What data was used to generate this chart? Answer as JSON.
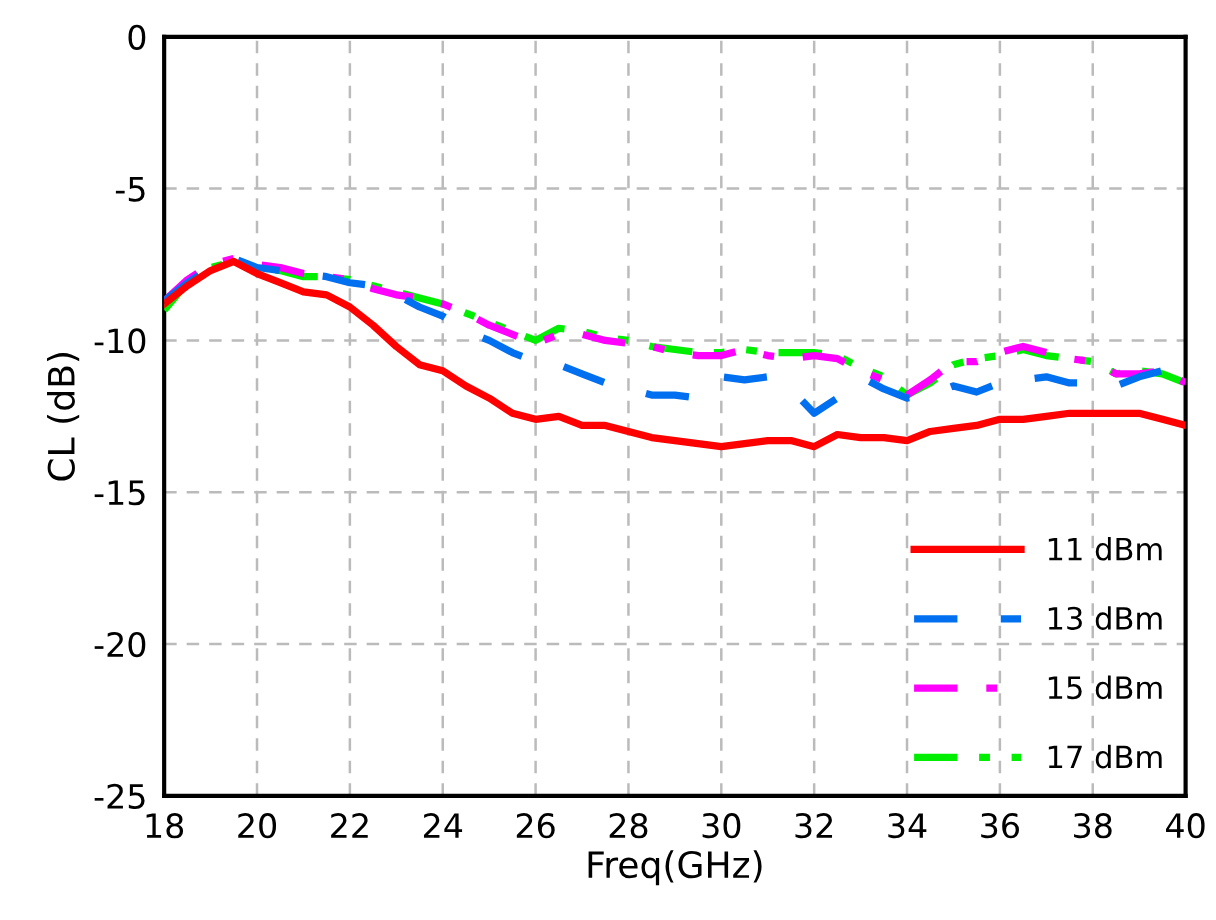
{
  "chart_data": {
    "type": "line",
    "xlabel": "Freq(GHz)",
    "ylabel": "CL (dB)",
    "x": [
      18,
      18.5,
      19,
      19.5,
      20,
      20.5,
      21,
      21.5,
      22,
      22.5,
      23,
      23.5,
      24,
      24.5,
      25,
      25.5,
      26,
      26.5,
      27,
      27.5,
      28,
      28.5,
      29,
      29.5,
      30,
      30.5,
      31,
      31.5,
      32,
      32.5,
      33,
      33.5,
      34,
      34.5,
      35,
      35.5,
      36,
      36.5,
      37,
      37.5,
      38,
      38.5,
      39,
      39.5,
      40
    ],
    "series": [
      {
        "name": "11 dBm",
        "color": "#ff0000",
        "line_style": "solid",
        "values": [
          -8.8,
          -8.2,
          -7.7,
          -7.4,
          -7.8,
          -8.1,
          -8.4,
          -8.5,
          -8.9,
          -9.5,
          -10.2,
          -10.8,
          -11.0,
          -11.5,
          -11.9,
          -12.4,
          -12.6,
          -12.5,
          -12.8,
          -12.8,
          -13.0,
          -13.2,
          -13.3,
          -13.4,
          -13.5,
          -13.4,
          -13.3,
          -13.3,
          -13.5,
          -13.1,
          -13.2,
          -13.2,
          -13.3,
          -13.0,
          -12.9,
          -12.8,
          -12.6,
          -12.6,
          -12.5,
          -12.4,
          -12.4,
          -12.4,
          -12.4,
          -12.6,
          -12.8
        ]
      },
      {
        "name": "13 dBm",
        "color": "#0070f0",
        "line_style": "dashed",
        "values": [
          -8.7,
          -8.1,
          -7.6,
          -7.3,
          -7.6,
          -7.7,
          -7.8,
          -7.9,
          -8.1,
          -8.2,
          -8.5,
          -8.9,
          -9.2,
          -9.7,
          -10.0,
          -10.4,
          -10.7,
          -10.8,
          -11.1,
          -11.4,
          -11.6,
          -11.8,
          -11.8,
          -11.9,
          -11.2,
          -11.3,
          -11.2,
          -11.6,
          -12.4,
          -11.9,
          -11.2,
          -11.6,
          -11.9,
          -11.8,
          -11.5,
          -11.7,
          -11.4,
          -11.3,
          -11.2,
          -11.4,
          -11.4,
          -11.5,
          -11.2,
          -11.0,
          -11.5
        ]
      },
      {
        "name": "15 dBm",
        "color": "#ff00ff",
        "line_style": "dashdot",
        "values": [
          -8.7,
          -8.0,
          -7.5,
          -7.3,
          -7.5,
          -7.6,
          -7.8,
          -7.9,
          -8.0,
          -8.3,
          -8.5,
          -8.6,
          -8.8,
          -9.1,
          -9.5,
          -9.8,
          -10.1,
          -9.8,
          -9.8,
          -10.0,
          -10.1,
          -10.2,
          -10.4,
          -10.5,
          -10.5,
          -10.3,
          -10.5,
          -10.6,
          -10.5,
          -10.6,
          -11.0,
          -11.3,
          -11.8,
          -11.3,
          -10.7,
          -10.7,
          -10.4,
          -10.2,
          -10.4,
          -10.6,
          -10.7,
          -11.1,
          -11.1,
          -11.0,
          -11.4
        ]
      },
      {
        "name": "17 dBm",
        "color": "#00ee00",
        "line_style": "dashdotdot",
        "values": [
          -9.0,
          -8.1,
          -7.6,
          -7.4,
          -7.6,
          -7.7,
          -7.9,
          -7.9,
          -8.0,
          -8.2,
          -8.4,
          -8.6,
          -8.8,
          -9.1,
          -9.4,
          -9.7,
          -10.0,
          -9.6,
          -9.7,
          -9.9,
          -10.0,
          -10.2,
          -10.3,
          -10.4,
          -10.4,
          -10.3,
          -10.4,
          -10.4,
          -10.4,
          -10.5,
          -10.9,
          -11.2,
          -11.8,
          -11.4,
          -10.8,
          -10.6,
          -10.5,
          -10.3,
          -10.5,
          -10.6,
          -10.7,
          -11.1,
          -11.0,
          -11.1,
          -11.4
        ]
      }
    ],
    "xlim": [
      18,
      40
    ],
    "xticks": [
      18,
      20,
      22,
      24,
      26,
      28,
      30,
      32,
      34,
      36,
      38,
      40
    ],
    "ylim": [
      -25,
      0
    ],
    "yticks": [
      -25,
      -20,
      -15,
      -10,
      -5,
      0
    ],
    "grid": true,
    "legend": "bottom right",
    "marker": "none"
  }
}
